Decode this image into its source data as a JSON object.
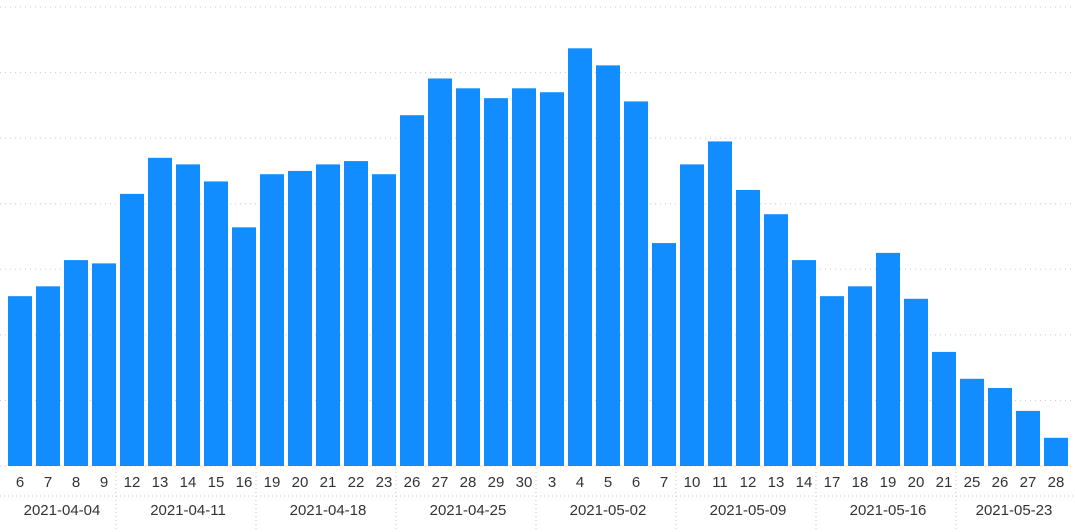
{
  "chart_data": {
    "type": "bar",
    "color": "#118dff",
    "grid": true,
    "ylim": [
      0,
      7
    ],
    "yticks": [
      0,
      1,
      2,
      3,
      4,
      5,
      6,
      7
    ],
    "groups": [
      {
        "label": "2021-04-04",
        "categories": [
          "6",
          "7",
          "8",
          "9"
        ],
        "values": [
          2.59,
          2.74,
          3.14,
          3.09
        ]
      },
      {
        "label": "2021-04-11",
        "categories": [
          "12",
          "13",
          "14",
          "15",
          "16"
        ],
        "values": [
          4.15,
          4.7,
          4.6,
          4.34,
          3.64
        ]
      },
      {
        "label": "2021-04-18",
        "categories": [
          "19",
          "20",
          "21",
          "22",
          "23"
        ],
        "values": [
          4.45,
          4.5,
          4.6,
          4.65,
          4.45
        ]
      },
      {
        "label": "2021-04-25",
        "categories": [
          "26",
          "27",
          "28",
          "29",
          "30"
        ],
        "values": [
          5.35,
          5.91,
          5.76,
          5.61,
          5.76
        ]
      },
      {
        "label": "2021-05-02",
        "categories": [
          "3",
          "4",
          "5",
          "6",
          "7"
        ],
        "values": [
          5.7,
          6.37,
          6.11,
          5.56,
          3.4
        ]
      },
      {
        "label": "2021-05-09",
        "categories": [
          "10",
          "11",
          "12",
          "13",
          "14"
        ],
        "values": [
          4.6,
          4.95,
          4.21,
          3.84,
          3.14
        ]
      },
      {
        "label": "2021-05-16",
        "categories": [
          "17",
          "18",
          "19",
          "20",
          "21"
        ],
        "values": [
          2.59,
          2.74,
          3.25,
          2.55,
          1.74
        ]
      },
      {
        "label": "2021-05-23",
        "categories": [
          "25",
          "26",
          "27",
          "28"
        ],
        "values": [
          1.33,
          1.19,
          0.84,
          0.43
        ]
      }
    ]
  }
}
